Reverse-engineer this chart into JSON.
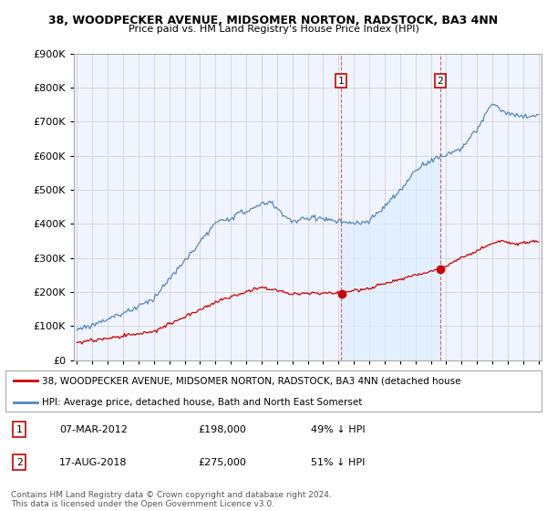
{
  "title": "38, WOODPECKER AVENUE, MIDSOMER NORTON, RADSTOCK, BA3 4NN",
  "subtitle": "Price paid vs. HM Land Registry's House Price Index (HPI)",
  "background_color": "#f0f4ff",
  "grid_color": "#cccccc",
  "hpi_color": "#5588bb",
  "hpi_fill_color": "#ddeeff",
  "price_color": "#cc0000",
  "marker1_date": 2012.18,
  "marker2_date": 2018.62,
  "marker1_price": 198000,
  "marker2_price": 275000,
  "legend_entry1": "38, WOODPECKER AVENUE, MIDSOMER NORTON, RADSTOCK, BA3 4NN (detached house",
  "legend_entry2": "HPI: Average price, detached house, Bath and North East Somerset",
  "copyright_text": "Contains HM Land Registry data © Crown copyright and database right 2024.\nThis data is licensed under the Open Government Licence v3.0.",
  "x_start_year": 1995,
  "x_end_year": 2025
}
